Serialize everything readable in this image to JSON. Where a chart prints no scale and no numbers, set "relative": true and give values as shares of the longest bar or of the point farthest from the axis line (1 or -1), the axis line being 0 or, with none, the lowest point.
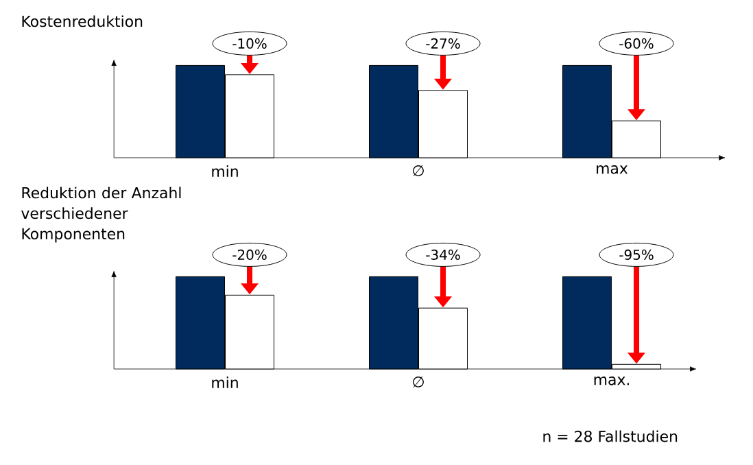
{
  "chart_data": [
    {
      "type": "bar",
      "title": "Kostenreduktion",
      "categories": [
        "min",
        "∅",
        "max"
      ],
      "relative": true,
      "series": [
        {
          "color": "#002b5c",
          "values": [
            1,
            1,
            1
          ]
        },
        {
          "color": "#ffffff",
          "values": [
            0.9,
            0.73,
            0.4
          ]
        }
      ],
      "annotations": [
        "-10%",
        "-27%",
        "-60%"
      ]
    },
    {
      "type": "bar",
      "title": "Reduktion der Anzahl verschiedener Komponenten",
      "categories": [
        "min",
        "∅",
        "max."
      ],
      "relative": true,
      "series": [
        {
          "color": "#002b5c",
          "values": [
            1,
            1,
            1
          ]
        },
        {
          "color": "#ffffff",
          "values": [
            0.8,
            0.66,
            0.05
          ]
        }
      ],
      "annotations": [
        "-20%",
        "-34%",
        "-95%",
        "n = 28 Fallstudien"
      ]
    }
  ]
}
